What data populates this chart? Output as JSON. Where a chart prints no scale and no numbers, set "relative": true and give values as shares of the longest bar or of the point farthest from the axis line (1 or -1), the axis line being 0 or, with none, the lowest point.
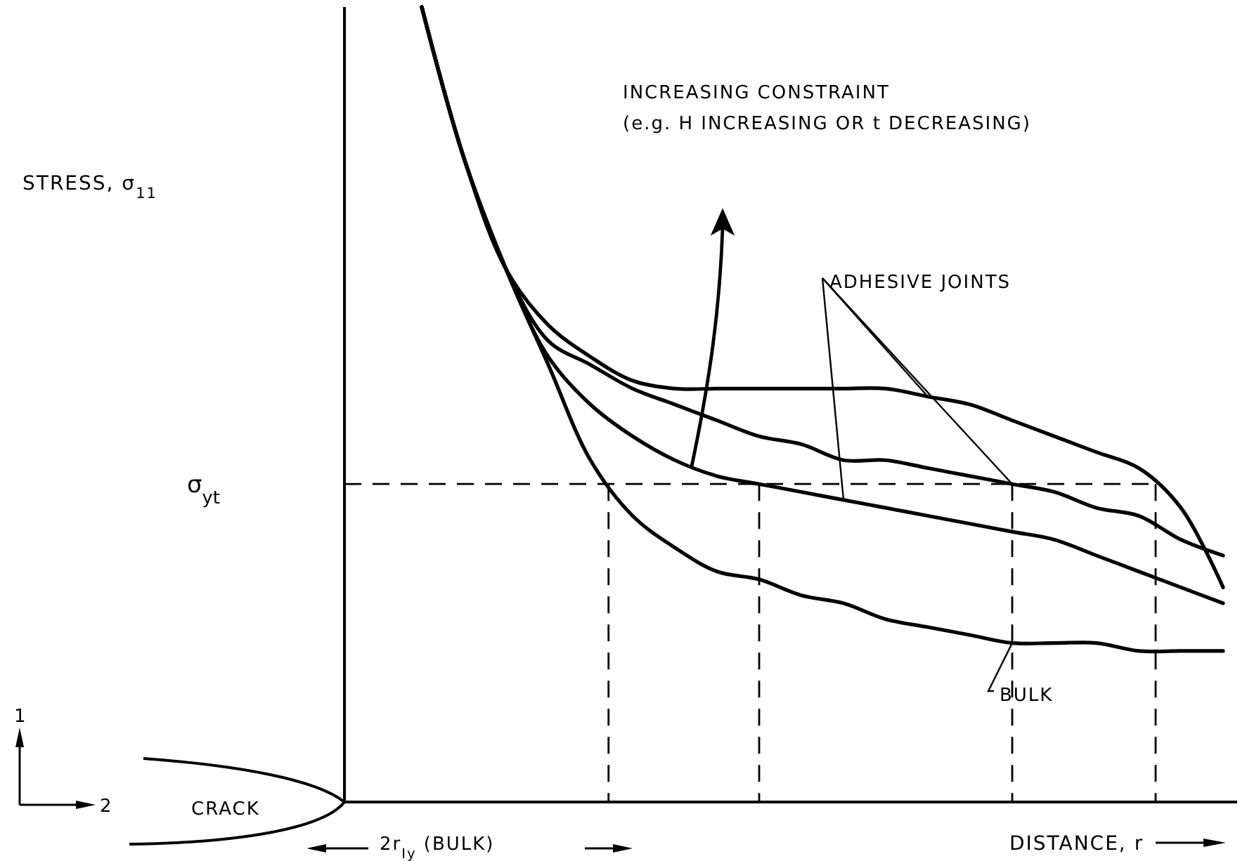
{
  "chart_data": {
    "type": "line",
    "relative": true,
    "xlabel": "DISTANCE, r",
    "categories": [
      null,
      null,
      null,
      null,
      null,
      null,
      null,
      null,
      null,
      null,
      null,
      null,
      null,
      null,
      null,
      null,
      null,
      null,
      null,
      null
    ],
    "series": [
      {
        "color": "#000000",
        "values": [
          1.0,
          0.81,
          0.67,
          0.6,
          0.56,
          0.53,
          0.52,
          0.52,
          0.52,
          0.52,
          0.52,
          0.52,
          0.51,
          0.5,
          0.48,
          0.46,
          0.44,
          0.42,
          0.37,
          0.27
        ]
      },
      {
        "color": "#000000",
        "values": [
          1.0,
          0.81,
          0.67,
          0.58,
          0.55,
          0.52,
          0.5,
          0.48,
          0.46,
          0.45,
          0.43,
          0.43,
          0.42,
          0.41,
          0.4,
          0.39,
          0.37,
          0.36,
          0.33,
          0.31
        ]
      },
      {
        "color": "#000000",
        "values": [
          1.0,
          0.81,
          0.67,
          0.56,
          0.5,
          0.46,
          0.43,
          0.41,
          0.4,
          0.39,
          0.38,
          0.37,
          0.36,
          0.35,
          0.34,
          0.33,
          0.31,
          0.29,
          0.27,
          0.25
        ]
      },
      {
        "color": "#000000",
        "values": [
          1.0,
          0.81,
          0.67,
          0.55,
          0.43,
          0.36,
          0.32,
          0.29,
          0.28,
          0.26,
          0.25,
          0.23,
          0.22,
          0.21,
          0.2,
          0.2,
          0.2,
          0.19,
          0.19,
          0.19
        ]
      }
    ],
    "ref_lines": [
      {
        "axis": "y",
        "value": 0.4,
        "label": "σ$_{yt}$",
        "line_style": "dashed"
      }
    ],
    "marker": "none",
    "line_style": "solid",
    "annotations": [
      "STRESS, σ$_{11}$",
      "INCREASING CONSTRAINT",
      "(e.g. H INCREASING OR t DECREASING)",
      "ADHESIVE JOINTS",
      "BULK",
      "CRACK",
      "2r$_{Iy}$ (BULK)",
      "1",
      "2"
    ]
  }
}
